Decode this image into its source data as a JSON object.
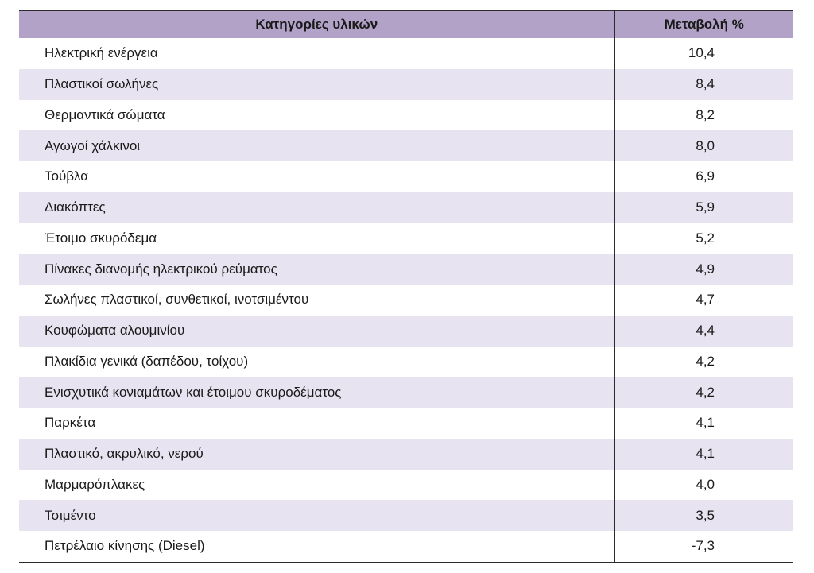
{
  "table": {
    "headers": {
      "category": "Κατηγορίες υλικών",
      "change": "Μεταβολή %"
    },
    "rows": [
      {
        "category": "Ηλεκτρική ενέργεια",
        "change": "10,4"
      },
      {
        "category": "Πλαστικοί σωλήνες",
        "change": "8,4"
      },
      {
        "category": "Θερμαντικά σώματα",
        "change": "8,2"
      },
      {
        "category": "Αγωγοί χάλκινοι",
        "change": "8,0"
      },
      {
        "category": "Τούβλα",
        "change": "6,9"
      },
      {
        "category": "Διακόπτες",
        "change": "5,9"
      },
      {
        "category": "Έτοιμο σκυρόδεμα",
        "change": "5,2"
      },
      {
        "category": "Πίνακες διανομής ηλεκτρικού ρεύματος",
        "change": "4,9"
      },
      {
        "category": "Σωλήνες πλαστικοί, συνθετικοί, ινοτσιμέντου",
        "change": "4,7"
      },
      {
        "category": "Κουφώματα αλουμινίου",
        "change": "4,4"
      },
      {
        "category": "Πλακίδια γενικά (δαπέδου, τοίχου)",
        "change": "4,2"
      },
      {
        "category": "Ενισχυτικά κονιαμάτων και έτοιμου σκυροδέματος",
        "change": "4,2"
      },
      {
        "category": "Παρκέτα",
        "change": "4,1"
      },
      {
        "category": "Πλαστικό, ακρυλικό, νερού",
        "change": "4,1"
      },
      {
        "category": "Μαρμαρόπλακες",
        "change": "4,0"
      },
      {
        "category": "Τσιμέντο",
        "change": "3,5"
      },
      {
        "category": "Πετρέλαιο κίνησης (Diesel)",
        "change": "-7,3"
      }
    ],
    "colors": {
      "header_bg": "#b3a2c8",
      "stripe_bg": "#e8e3f0",
      "rule": "#2b2b2b"
    }
  }
}
